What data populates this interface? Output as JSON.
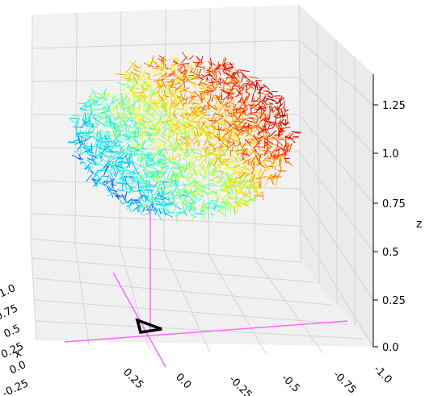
{
  "chart_data": {
    "type": "3d-quiver",
    "colormap": "jet",
    "grid": true,
    "axes": {
      "x": {
        "label": "x",
        "ticks": [
          "1.0",
          "0.75",
          "0.5",
          "0.25",
          "0.0",
          "-0.25"
        ]
      },
      "y": {
        "ticks": [
          "0.25",
          "0.0",
          "-0.25",
          "-0.5",
          "-0.75",
          "-1.0"
        ]
      },
      "z": {
        "label": "z",
        "ticks": [
          "1.25",
          "1.0",
          "0.75",
          "0.5",
          "0.25",
          "0.0"
        ]
      }
    },
    "vector_field": {
      "x_range": [
        -0.25,
        0.5
      ],
      "y_range": [
        -0.5,
        0.25
      ],
      "z_range": [
        0.6,
        1.3
      ],
      "color_gradient": "blue (front-left) to red (back-right top)"
    },
    "annotation": {
      "marker": "triangle-outline",
      "marker_color": "#000000",
      "guide_line_color": "#ff66ff"
    }
  }
}
